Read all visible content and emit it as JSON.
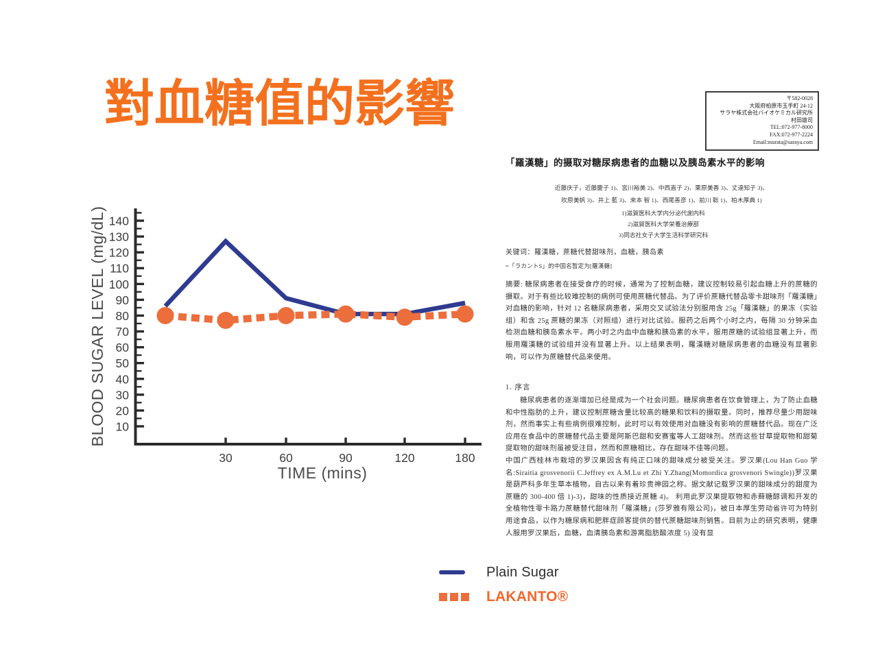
{
  "slide": {
    "title": "對血糖值的影響",
    "title_color": "#F3701E"
  },
  "chart_data": {
    "type": "line",
    "title": "",
    "xlabel": "TIME (mins)",
    "ylabel": "BLOOD SUGAR LEVEL (mg/dL)",
    "x_categories": [
      0,
      30,
      60,
      90,
      120,
      180
    ],
    "x_tick_labels": [
      "",
      "30",
      "60",
      "90",
      "120",
      "180"
    ],
    "y_axis": {
      "min": 10,
      "max": 145,
      "label_step": 10,
      "minor_step": 5,
      "unit": "mg/dL"
    },
    "grid": false,
    "legend_position": "inside-right-middle",
    "axis_color": "#2b2b2b",
    "tick_label_color": "#3d3d3d",
    "axis_title_color": "#4c4c4c",
    "series": [
      {
        "name": "Plain Sugar",
        "color": "#2E3B90",
        "label_color": "#2d2d2d",
        "style": "solid",
        "values": [
          86,
          127,
          91,
          81,
          81,
          88
        ]
      },
      {
        "name": "LAKANTO®",
        "color": "#EC6E3C",
        "label_color": "#F2672C",
        "style": "dashed-dots",
        "values": [
          80,
          77,
          80,
          81,
          79,
          81
        ]
      }
    ]
  },
  "document": {
    "contact_box": {
      "lines": [
        "〒582-0028",
        "大阪府柏原市玉手町 24-12",
        "サラヤ株式会社バイオケミカル研究所",
        "村田雄司",
        "TEL:072-977-8000",
        "FAX:072-977-2224",
        "Email:murata@saraya.com"
      ]
    },
    "title": "「羅漢糖」的摄取对糖尿病患者的血糖以及胰岛素水平的影响",
    "authors": [
      "近藤庆子，近藤慶子 1)、宮川裕美 2)、中西直子 2)、栗原美香 3)、丈達知子 3)、",
      "吹原美帆 3)、井上 藍 3)、来本 智 1)、西尾善彦 1)、前川 聡 1)、柏木厚典 1)"
    ],
    "affiliations": [
      "1)滋賀医科大学内分泌代謝内科",
      "2)滋賀医科大学栄養治療部",
      "3)同志社女子大学生活科学研究科"
    ],
    "keywords": "关键词：羅漢糖，蔗糖代替甜味剂，血糖，胰岛素",
    "keywords_note": "=「ラカントS」的中国名暂定为[羅漢糖]",
    "abstract": "摘要: 糖尿病患者在接受食疗的时候，通常为了控制血糖，建议控制较易引起血糖上升的蔗糖的摄取。对于有些比较难控制的病例可使用蔗糖代替品。为了评价蔗糖代替品零卡甜味剂「羅漢糖」对血糖的影响，针对 12 名糖尿病患者，采用交叉试验法分别服用含 25g「羅漢糖」的果冻（实验组）和含 25g 蔗糖的果冻（对照组）进行对比试验。服药之后两个小时之内，每隔 30 分钟采血检测血糖和胰岛素水平。两小时之内血中血糖和胰岛素的水平，服用蔗糖的试验组显著上升，而服用羅漢糖的试验组并没有显著上升。以上结果表明，羅漢糖对糖尿病患者的血糖没有显著影响，可以作为蔗糖替代品来使用。",
    "section1_heading": "1. 序言",
    "intro_par1": "糖尿病患者的逐渐增加已经是成为一个社会问题。糖尿病患者在饮食管理上，为了防止血糖和中性脂肪的上升，建议控制蔗糖含量比较高的糖果和饮料的摄取量。同时，推荐尽量少用甜味剂，然而事实上有些病例很难控制，此时可以有效使用对血糖没有影响的蔗糖替代品。现在广泛应用在食品中的蔗糖替代品主要是阿斯巴甜和安赛蜜等人工甜味剂。然而这些甘草提取物和甜菊提取物的甜味剂虽被受注目，然而和蔗糖相比，存在甜味不佳等问题。",
    "intro_par2": "中国广西桂林市栽培的罗汉果因含有纯正口味的甜味成分被受关注。罗汉果(Lou Han Guo 学名:Siraitia grosvenorii C.Jeffrey ex A.M.Lu et Zhi Y.Zhang(Momordica grosvenori Swingle))罗汉果是葫芦科多年生草本植物，自古以来有着珍贵神园之称。据文献记载罗汉果的甜味成分的甜度为蔗糖的 300-400 倍 1)-3)，甜味的性质接近蔗糖 4)。 利用此罗汉果提取物和赤藓糖醇调和开发的全植物性零卡路力蔗糖替代甜味剂「羅漢糖」(莎罗雅有限公司)，被日本厚生劳动省许可为特别用途食品，以作为糖尿病和肥胖症顾客提供的替代蔗糖甜味剂销售。目前为止的研究表明，健康人服用罗汉果后，血糖，血清胰岛素和游离脂肪酸浓度 5) 没有显"
  }
}
